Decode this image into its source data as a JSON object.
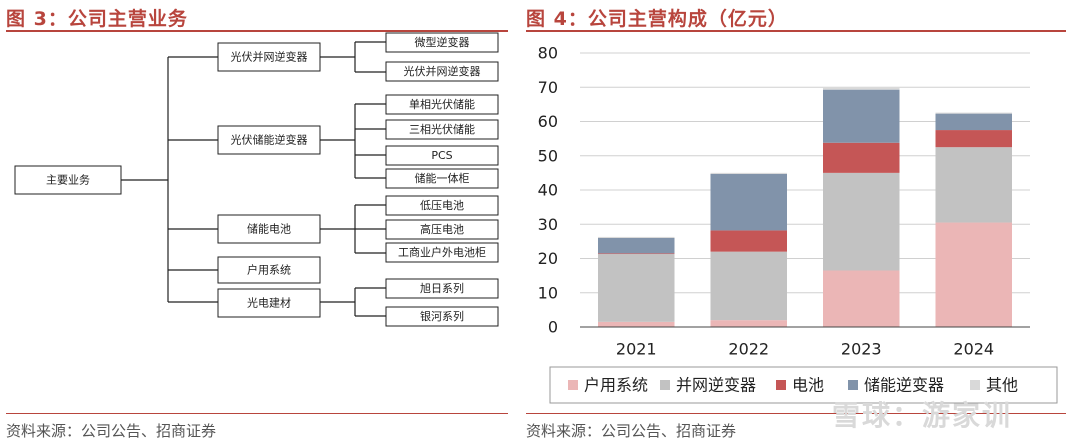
{
  "left_figure": {
    "title": "图 3：公司主营业务",
    "source": "资料来源：公司公告、招商证券",
    "root": "主要业务",
    "branches": [
      {
        "label": "光伏并网逆变器",
        "children": [
          "微型逆变器",
          "光伏并网逆变器"
        ]
      },
      {
        "label": "光伏储能逆变器",
        "children": [
          "单相光伏储能",
          "三相光伏储能",
          "PCS",
          "储能一体柜"
        ]
      },
      {
        "label": "储能电池",
        "children": [
          "低压电池",
          "高压电池",
          "工商业户外电池柜"
        ]
      },
      {
        "label": "户用系统",
        "children": []
      },
      {
        "label": "光电建材",
        "children": [
          "旭日系列",
          "银河系列"
        ]
      }
    ]
  },
  "right_figure": {
    "title": "图 4：公司主营构成（亿元）",
    "source": "资料来源：公司公告、招商证券"
  },
  "watermark": "雪球：游家训",
  "colors": {
    "accent": "#b8453d",
    "户用系统": "#ebb6b6",
    "并网逆变器": "#c2c2c2",
    "电池": "#c55656",
    "储能逆变器": "#8193aa",
    "其他": "#d9d9d9"
  },
  "chart_data": {
    "type": "bar",
    "stacked": true,
    "title": "公司主营构成（亿元）",
    "categories": [
      "2021",
      "2022",
      "2023",
      "2024"
    ],
    "series": [
      {
        "name": "户用系统",
        "values": [
          1.5,
          2.0,
          16.5,
          30.5
        ]
      },
      {
        "name": "并网逆变器",
        "values": [
          19.8,
          20.0,
          28.5,
          22.0
        ]
      },
      {
        "name": "电池",
        "values": [
          0.2,
          6.2,
          8.8,
          5.0
        ]
      },
      {
        "name": "储能逆变器",
        "values": [
          4.5,
          16.5,
          15.5,
          4.8
        ]
      },
      {
        "name": "其他",
        "values": [
          0.3,
          0.3,
          0.5,
          0.3
        ]
      }
    ],
    "yticks": [
      0,
      10,
      20,
      30,
      40,
      50,
      60,
      70,
      80
    ],
    "ylim": [
      0,
      80
    ],
    "grid": true,
    "legend_position": "bottom"
  }
}
